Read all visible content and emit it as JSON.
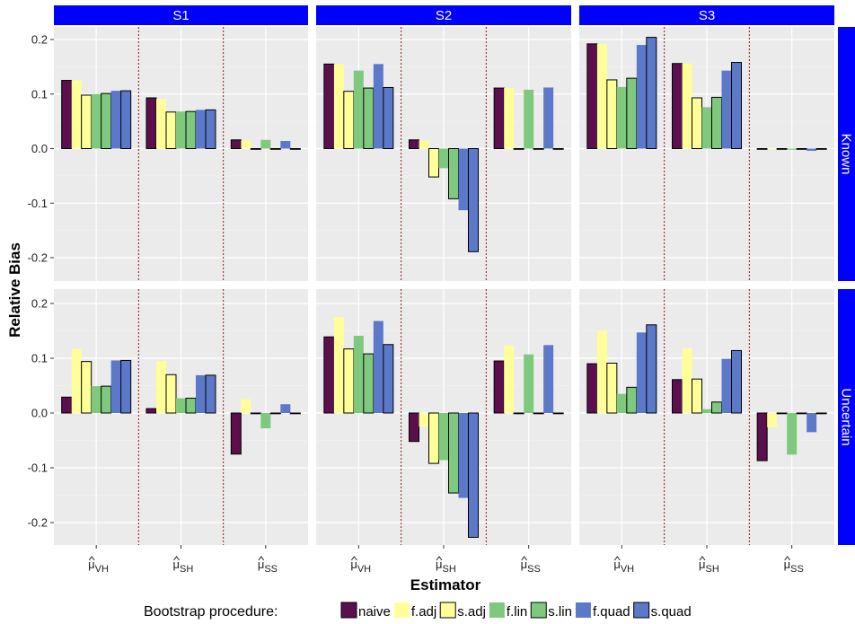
{
  "chart_data": {
    "type": "bar",
    "ylabel": "Relative Bias",
    "xlabel": "Estimator",
    "ylim": [
      -0.25,
      0.225
    ],
    "yticks": [
      -0.2,
      -0.1,
      0.0,
      0.1,
      0.2
    ],
    "ytick_labels": [
      "-0.2",
      "-0.1",
      "0.0",
      "0.1",
      "0.2"
    ],
    "grid": true,
    "facet_cols": [
      "S1",
      "S2",
      "S3"
    ],
    "facet_rows": [
      "Known",
      "Uncertain"
    ],
    "estimators": [
      {
        "id": "VH",
        "base": "μ",
        "sub": "VH"
      },
      {
        "id": "SH",
        "base": "μ",
        "sub": "SH"
      },
      {
        "id": "SS",
        "base": "μ",
        "sub": "SS"
      }
    ],
    "legend": {
      "title": "Bootstrap procedure:",
      "position": "bottom",
      "series": [
        {
          "name": "naive",
          "color": "#5b0f4f",
          "outlined": true
        },
        {
          "name": "f.adj",
          "color": "#ffff99",
          "outlined": false
        },
        {
          "name": "s.adj",
          "color": "#ffff99",
          "outlined": true
        },
        {
          "name": "f.lin",
          "color": "#7fc97f",
          "outlined": false
        },
        {
          "name": "s.lin",
          "color": "#7fc97f",
          "outlined": true
        },
        {
          "name": "f.quad",
          "color": "#5c78c9",
          "outlined": false
        },
        {
          "name": "s.quad",
          "color": "#5c78c9",
          "outlined": true
        }
      ]
    },
    "colors": {
      "strip_background": "#0000ff",
      "panel_background": "#ebebeb",
      "separator": "#8b1a1a"
    },
    "panels": [
      {
        "row": "Known",
        "col": "S1",
        "values": [
          [
            0.125,
            0.125,
            0.098,
            0.1,
            0.101,
            0.106,
            0.106
          ],
          [
            0.093,
            0.091,
            0.067,
            0.068,
            0.068,
            0.071,
            0.071
          ],
          [
            0.016,
            0.015,
            0.0,
            0.016,
            0.0,
            0.014,
            0.0
          ]
        ]
      },
      {
        "row": "Known",
        "col": "S2",
        "values": [
          [
            0.155,
            0.155,
            0.105,
            0.143,
            0.111,
            0.155,
            0.112
          ],
          [
            0.016,
            0.015,
            -0.052,
            -0.036,
            -0.092,
            -0.113,
            -0.189
          ],
          [
            0.111,
            0.111,
            0.0,
            0.108,
            0.0,
            0.112,
            0.0
          ]
        ]
      },
      {
        "row": "Known",
        "col": "S3",
        "values": [
          [
            0.192,
            0.192,
            0.126,
            0.113,
            0.129,
            0.19,
            0.204
          ],
          [
            0.156,
            0.156,
            0.093,
            0.076,
            0.094,
            0.143,
            0.158
          ],
          [
            0.0,
            0.0,
            0.0,
            -0.002,
            0.0,
            -0.004,
            0.0
          ]
        ]
      },
      {
        "row": "Uncertain",
        "col": "S1",
        "values": [
          [
            0.029,
            0.117,
            0.094,
            0.049,
            0.049,
            0.096,
            0.096
          ],
          [
            0.008,
            0.095,
            0.07,
            0.027,
            0.027,
            0.069,
            0.069
          ],
          [
            -0.075,
            0.025,
            0.0,
            -0.028,
            0.0,
            0.016,
            0.0
          ]
        ]
      },
      {
        "row": "Uncertain",
        "col": "S2",
        "values": [
          [
            0.139,
            0.175,
            0.117,
            0.141,
            0.108,
            0.168,
            0.125
          ],
          [
            -0.052,
            -0.025,
            -0.092,
            -0.086,
            -0.146,
            -0.155,
            -0.227
          ],
          [
            0.095,
            0.123,
            0.0,
            0.107,
            0.0,
            0.124,
            0.0
          ]
        ]
      },
      {
        "row": "Uncertain",
        "col": "S3",
        "values": [
          [
            0.09,
            0.15,
            0.091,
            0.035,
            0.047,
            0.147,
            0.161
          ],
          [
            0.061,
            0.118,
            0.062,
            0.007,
            0.02,
            0.099,
            0.114
          ],
          [
            -0.087,
            -0.026,
            0.0,
            -0.076,
            0.0,
            -0.035,
            0.0
          ]
        ]
      }
    ]
  }
}
